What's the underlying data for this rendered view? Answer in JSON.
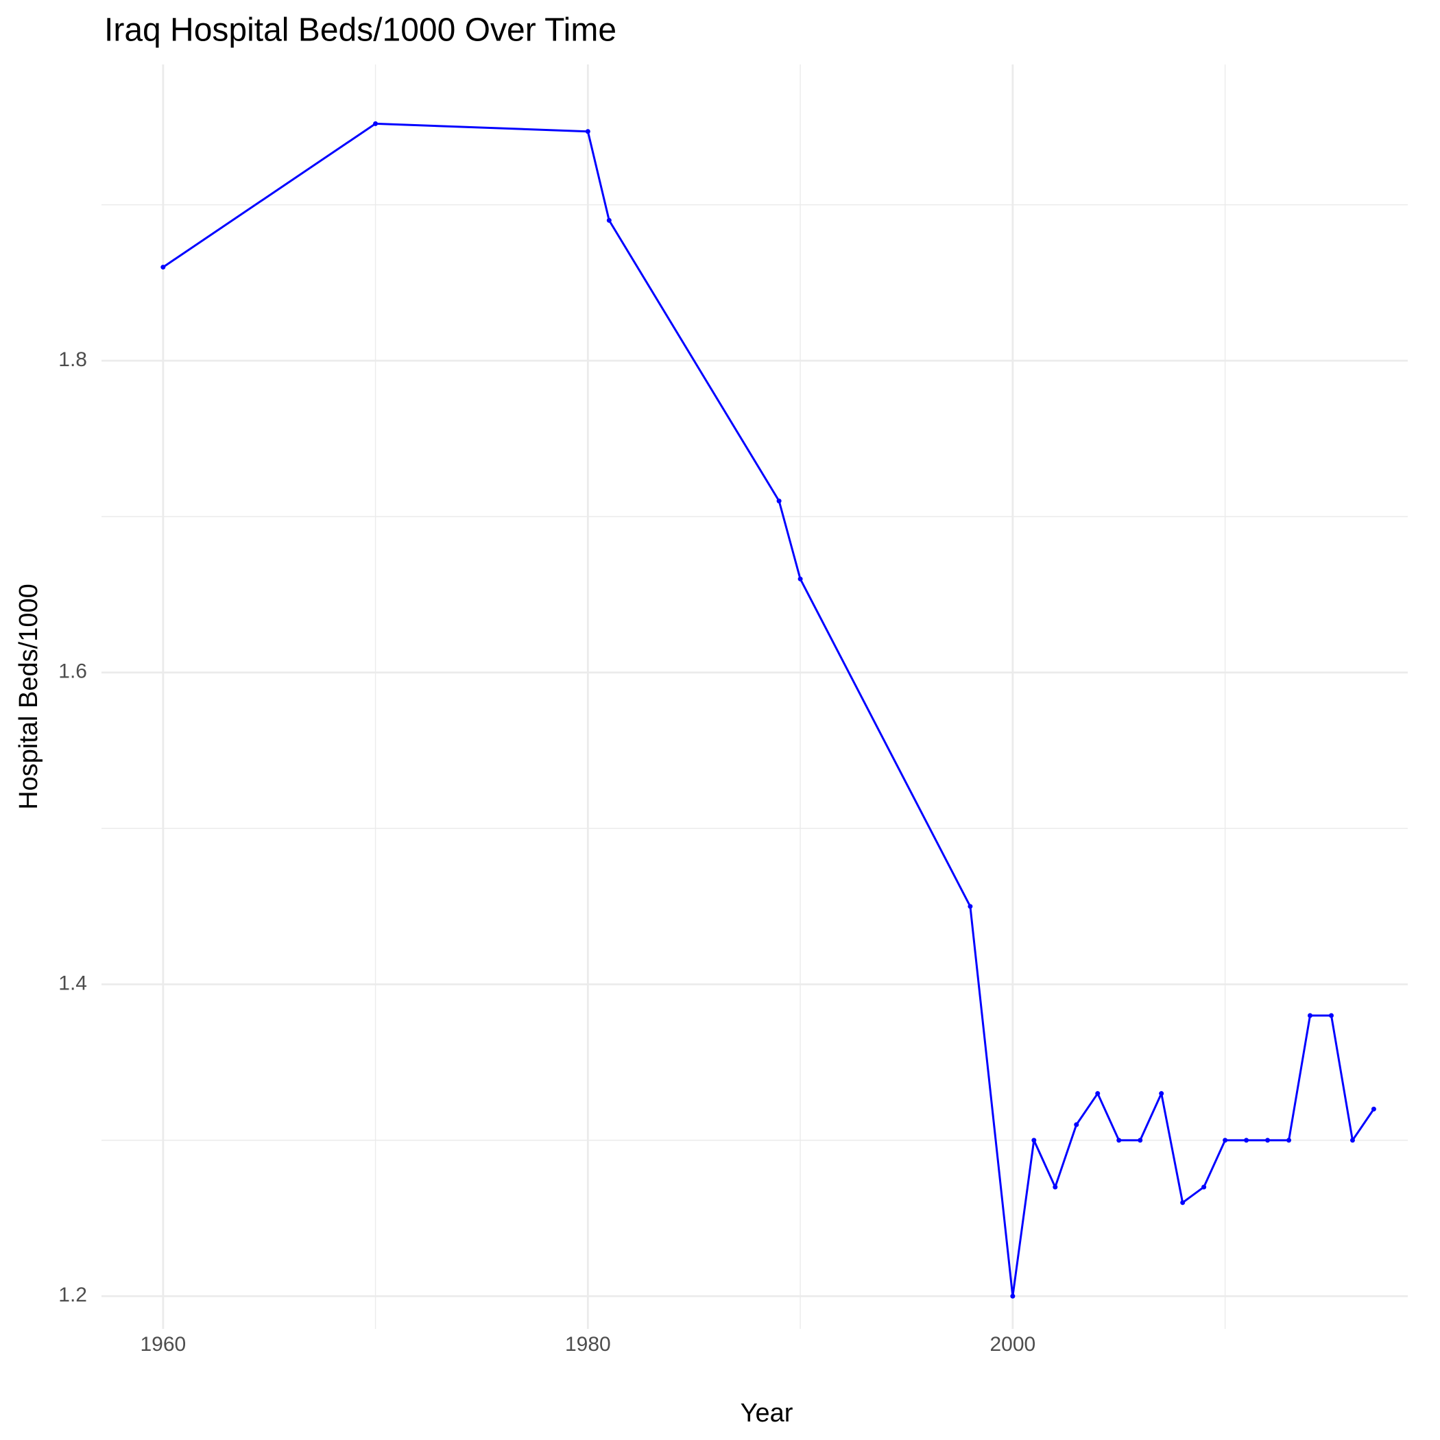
{
  "chart_data": {
    "type": "line",
    "title": "Iraq Hospital Beds/1000 Over Time",
    "x_label": "Year",
    "y_label": "Hospital Beds/1000",
    "x": [
      1960,
      1970,
      1980,
      1981,
      1989,
      1990,
      1998,
      2000,
      2001,
      2002,
      2003,
      2004,
      2005,
      2006,
      2007,
      2008,
      2009,
      2010,
      2011,
      2012,
      2013,
      2014,
      2015,
      2016,
      2017
    ],
    "values": [
      1.86,
      1.952,
      1.947,
      1.89,
      1.71,
      1.66,
      1.45,
      1.2,
      1.3,
      1.27,
      1.31,
      1.33,
      1.3,
      1.3,
      1.33,
      1.26,
      1.27,
      1.3,
      1.3,
      1.3,
      1.3,
      1.38,
      1.38,
      1.3,
      1.32
    ],
    "color": "#0000ff",
    "xlim": [
      1957.1,
      2018.6
    ],
    "xticks": [
      1960,
      1980,
      2000
    ],
    "xminor": [
      1970,
      1990,
      2010
    ],
    "ylim": [
      1.179,
      1.99
    ],
    "yticks": [
      1.2,
      1.4,
      1.6,
      1.8
    ],
    "yminor": [
      1.3,
      1.5,
      1.7,
      1.9
    ],
    "grid": true
  }
}
